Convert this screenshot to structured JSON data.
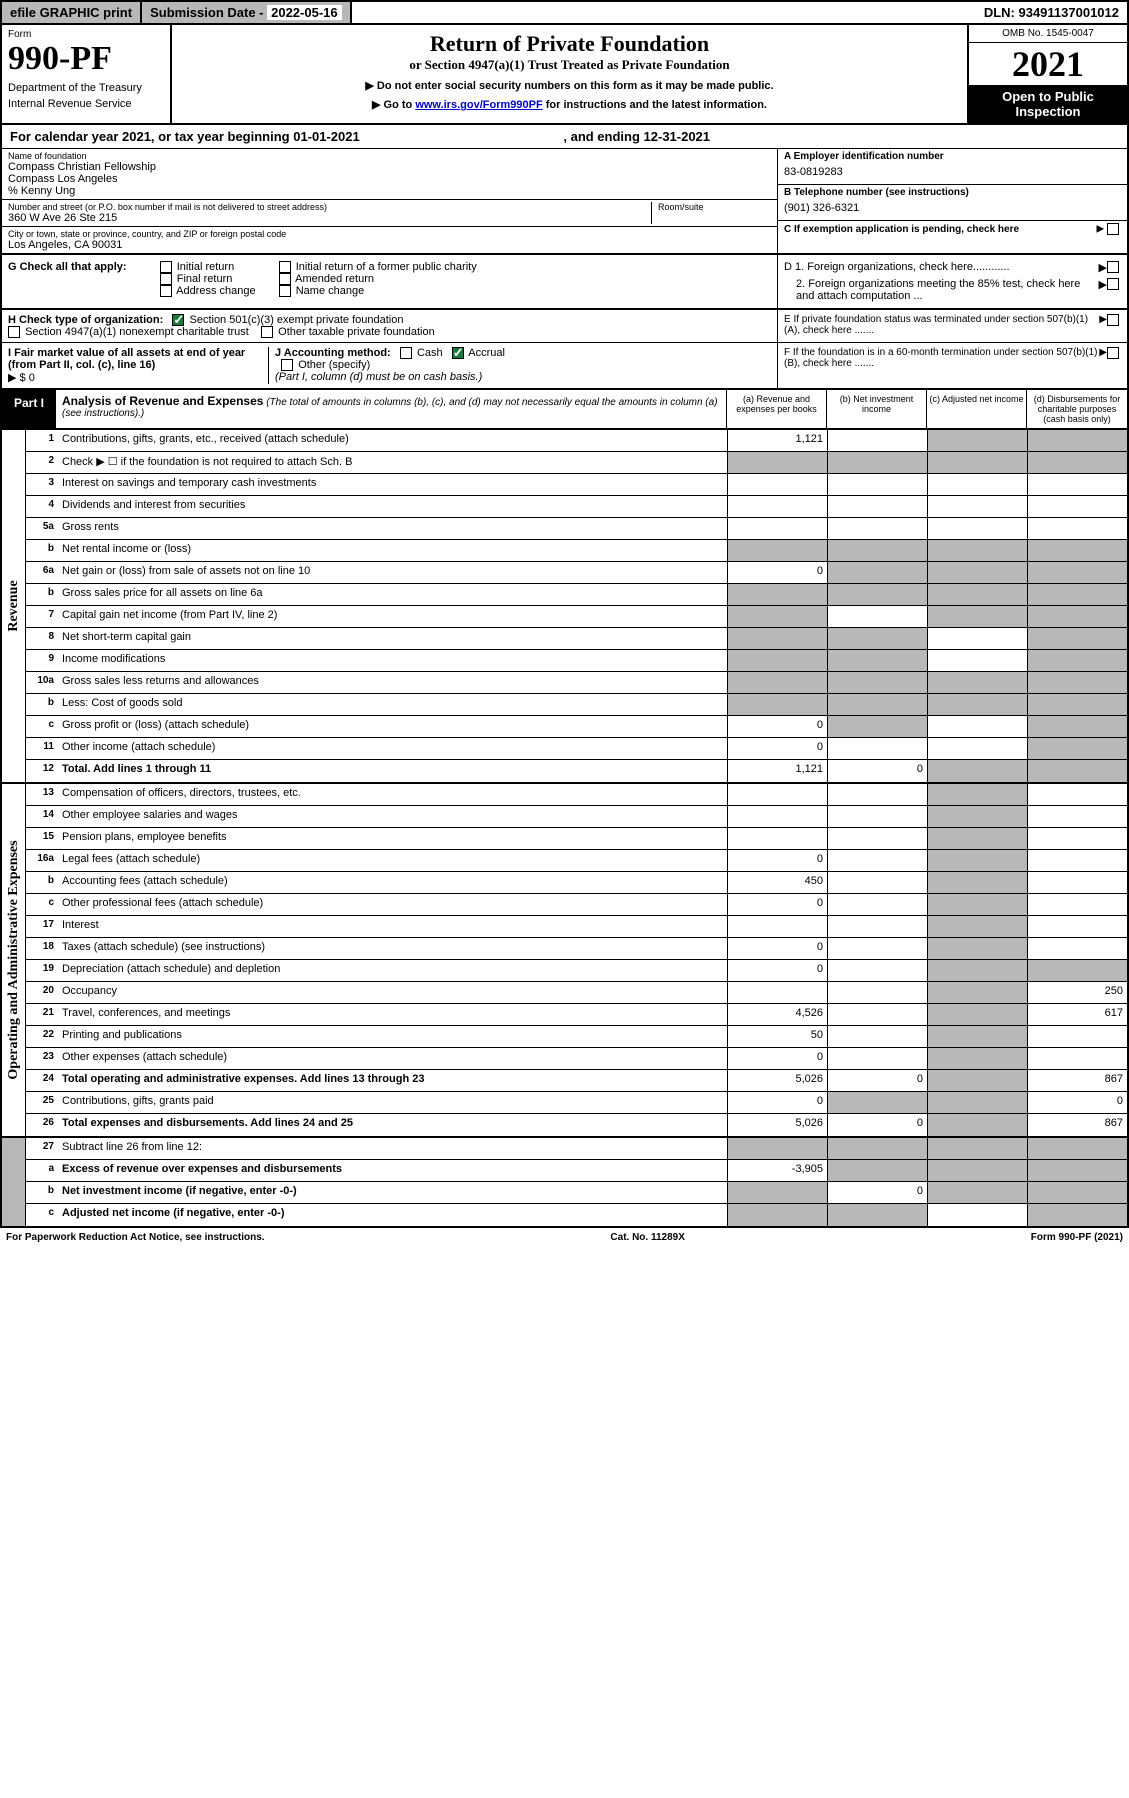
{
  "topbar": {
    "efile": "efile GRAPHIC print",
    "subdate_label": "Submission Date - ",
    "subdate_val": "2022-05-16",
    "dln": "DLN: 93491137001012"
  },
  "header": {
    "form_label": "Form",
    "form_num": "990-PF",
    "dept1": "Department of the Treasury",
    "dept2": "Internal Revenue Service",
    "title": "Return of Private Foundation",
    "subtitle": "or Section 4947(a)(1) Trust Treated as Private Foundation",
    "note1": "▶ Do not enter social security numbers on this form as it may be made public.",
    "note2_pre": "▶ Go to ",
    "note2_link": "www.irs.gov/Form990PF",
    "note2_post": " for instructions and the latest information.",
    "omb": "OMB No. 1545-0047",
    "year": "2021",
    "open": "Open to Public Inspection"
  },
  "calyear": {
    "text": "For calendar year 2021, or tax year beginning 01-01-2021",
    "ending": ", and ending 12-31-2021"
  },
  "name_block": {
    "label": "Name of foundation",
    "line1": "Compass Christian Fellowship",
    "line2": "Compass Los Angeles",
    "line3": "% Kenny Ung",
    "addr_label": "Number and street (or P.O. box number if mail is not delivered to street address)",
    "room_label": "Room/suite",
    "addr": "360 W Ave 26 Ste 215",
    "city_label": "City or town, state or province, country, and ZIP or foreign postal code",
    "city": "Los Angeles, CA  90031"
  },
  "right_block": {
    "a_label": "A Employer identification number",
    "a_val": "83-0819283",
    "b_label": "B Telephone number (see instructions)",
    "b_val": "(901) 326-6321",
    "c_label": "C If exemption application is pending, check here",
    "d1": "D 1. Foreign organizations, check here............",
    "d2": "2. Foreign organizations meeting the 85% test, check here and attach computation ...",
    "e": "E  If private foundation status was terminated under section 507(b)(1)(A), check here .......",
    "f": "F  If the foundation is in a 60-month termination under section 507(b)(1)(B), check here ......."
  },
  "g": {
    "label": "G Check all that apply:",
    "opts": [
      "Initial return",
      "Final return",
      "Address change",
      "Initial return of a former public charity",
      "Amended return",
      "Name change"
    ]
  },
  "h": {
    "label": "H Check type of organization:",
    "opt1": "Section 501(c)(3) exempt private foundation",
    "opt2": "Section 4947(a)(1) nonexempt charitable trust",
    "opt3": "Other taxable private foundation"
  },
  "i": {
    "label": "I Fair market value of all assets at end of year (from Part II, col. (c), line 16)",
    "val": "▶ $  0"
  },
  "j": {
    "label": "J Accounting method:",
    "cash": "Cash",
    "accrual": "Accrual",
    "other": "Other (specify)",
    "note": "(Part I, column (d) must be on cash basis.)"
  },
  "part1": {
    "tab": "Part I",
    "title": "Analysis of Revenue and Expenses",
    "subtitle": " (The total of amounts in columns (b), (c), and (d) may not necessarily equal the amounts in column (a) (see instructions).)",
    "cols": [
      "(a)   Revenue and expenses per books",
      "(b)   Net investment income",
      "(c)   Adjusted net income",
      "(d)  Disbursements for charitable purposes (cash basis only)"
    ]
  },
  "revenue_label": "Revenue",
  "expense_label": "Operating and Administrative Expenses",
  "rows": [
    {
      "n": "1",
      "d": "Contributions, gifts, grants, etc., received (attach schedule)",
      "a": "1,121",
      "bg": false,
      "cg": true,
      "dg": true
    },
    {
      "n": "2",
      "d": "Check ▶ ☐ if the foundation is not required to attach Sch. B",
      "allgrey": true
    },
    {
      "n": "3",
      "d": "Interest on savings and temporary cash investments"
    },
    {
      "n": "4",
      "d": "Dividends and interest from securities"
    },
    {
      "n": "5a",
      "d": "Gross rents"
    },
    {
      "n": "b",
      "d": "Net rental income or (loss)",
      "allgrey": true
    },
    {
      "n": "6a",
      "d": "Net gain or (loss) from sale of assets not on line 10",
      "a": "0",
      "bg": true,
      "cg": true,
      "dg": true
    },
    {
      "n": "b",
      "d": "Gross sales price for all assets on line 6a",
      "allgrey": true
    },
    {
      "n": "7",
      "d": "Capital gain net income (from Part IV, line 2)",
      "ag": true,
      "cg": true,
      "dg": true
    },
    {
      "n": "8",
      "d": "Net short-term capital gain",
      "ag": true,
      "bg": true,
      "dg": true
    },
    {
      "n": "9",
      "d": "Income modifications",
      "ag": true,
      "bg": true,
      "dg": true
    },
    {
      "n": "10a",
      "d": "Gross sales less returns and allowances",
      "allgrey": true
    },
    {
      "n": "b",
      "d": "Less: Cost of goods sold",
      "allgrey": true
    },
    {
      "n": "c",
      "d": "Gross profit or (loss) (attach schedule)",
      "a": "0",
      "bg": true,
      "dg": true
    },
    {
      "n": "11",
      "d": "Other income (attach schedule)",
      "a": "0",
      "dg": true
    },
    {
      "n": "12",
      "d": "Total. Add lines 1 through 11",
      "bold": true,
      "a": "1,121",
      "b": "0",
      "cg": true,
      "dg": true
    }
  ],
  "exp_rows": [
    {
      "n": "13",
      "d": "Compensation of officers, directors, trustees, etc.",
      "cg": true
    },
    {
      "n": "14",
      "d": "Other employee salaries and wages",
      "cg": true
    },
    {
      "n": "15",
      "d": "Pension plans, employee benefits",
      "cg": true
    },
    {
      "n": "16a",
      "d": "Legal fees (attach schedule)",
      "a": "0",
      "cg": true
    },
    {
      "n": "b",
      "d": "Accounting fees (attach schedule)",
      "a": "450",
      "cg": true
    },
    {
      "n": "c",
      "d": "Other professional fees (attach schedule)",
      "a": "0",
      "cg": true
    },
    {
      "n": "17",
      "d": "Interest",
      "cg": true
    },
    {
      "n": "18",
      "d": "Taxes (attach schedule) (see instructions)",
      "a": "0",
      "cg": true
    },
    {
      "n": "19",
      "d": "Depreciation (attach schedule) and depletion",
      "a": "0",
      "cg": true,
      "dg": true
    },
    {
      "n": "20",
      "d": "Occupancy",
      "cg": true,
      "dval": "250"
    },
    {
      "n": "21",
      "d": "Travel, conferences, and meetings",
      "a": "4,526",
      "cg": true,
      "dval": "617"
    },
    {
      "n": "22",
      "d": "Printing and publications",
      "a": "50",
      "cg": true
    },
    {
      "n": "23",
      "d": "Other expenses (attach schedule)",
      "a": "0",
      "cg": true
    },
    {
      "n": "24",
      "d": "Total operating and administrative expenses. Add lines 13 through 23",
      "bold": true,
      "a": "5,026",
      "b": "0",
      "cg": true,
      "dval": "867"
    },
    {
      "n": "25",
      "d": "Contributions, gifts, grants paid",
      "a": "0",
      "bg": true,
      "cg": true,
      "dval": "0"
    },
    {
      "n": "26",
      "d": "Total expenses and disbursements. Add lines 24 and 25",
      "bold": true,
      "a": "5,026",
      "b": "0",
      "cg": true,
      "dval": "867"
    }
  ],
  "bottom_rows": [
    {
      "n": "27",
      "d": "Subtract line 26 from line 12:",
      "allgrey": true
    },
    {
      "n": "a",
      "d": "Excess of revenue over expenses and disbursements",
      "bold": true,
      "a": "-3,905",
      "bg": true,
      "cg": true,
      "dg": true
    },
    {
      "n": "b",
      "d": "Net investment income (if negative, enter -0-)",
      "bold": true,
      "ag": true,
      "b": "0",
      "cg": true,
      "dg": true
    },
    {
      "n": "c",
      "d": "Adjusted net income (if negative, enter -0-)",
      "bold": true,
      "ag": true,
      "bg": true,
      "dg": true
    }
  ],
  "footer": {
    "left": "For Paperwork Reduction Act Notice, see instructions.",
    "center": "Cat. No. 11289X",
    "right": "Form 990-PF (2021)"
  }
}
